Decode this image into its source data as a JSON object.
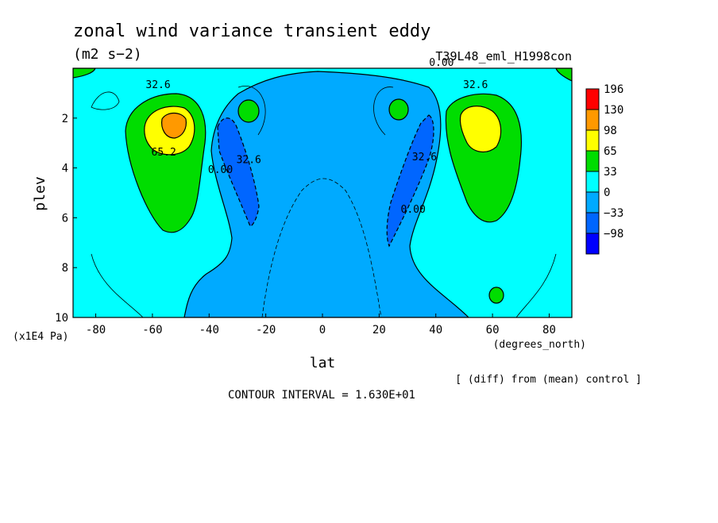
{
  "chart_data": {
    "type": "heatmap",
    "title": "zonal wind variance transient eddy",
    "units": "(m2 s−2)",
    "run_label": "T39L48_eml_H1998con",
    "xlabel": "lat",
    "x_unit": "(degrees_north)",
    "ylabel": "plev",
    "y_unit": "(x1E4 Pa)",
    "x_ticks": [
      "-80",
      "-60",
      "-40",
      "-20",
      "0",
      "20",
      "40",
      "60",
      "80"
    ],
    "y_ticks": [
      "2",
      "4",
      "6",
      "8",
      "10"
    ],
    "xlim": [
      -88,
      88
    ],
    "ylim": [
      0,
      10
    ],
    "y_reversed": true,
    "colorbar": {
      "labels": [
        "196",
        "130",
        "98",
        "65",
        "33",
        "0",
        "−33",
        "−98"
      ],
      "colors": [
        "#ff0000",
        "#ff9900",
        "#ffff00",
        "#00dd00",
        "#00ffff",
        "#00aaff",
        "#0066ff",
        "#0000ff"
      ]
    },
    "contour_labels": [
      {
        "text": "32.6",
        "lat": -58,
        "plev": 0.8
      },
      {
        "text": "65.2",
        "lat": -56,
        "plev": 3.5
      },
      {
        "text": "32.6",
        "lat": -26,
        "plev": 3.8
      },
      {
        "text": "0.00",
        "lat": -36,
        "plev": 4.2
      },
      {
        "text": "0.00",
        "lat": 42,
        "plev": -0.1
      },
      {
        "text": "32.6",
        "lat": 54,
        "plev": 0.8
      },
      {
        "text": "32.6",
        "lat": 36,
        "plev": 3.7
      },
      {
        "text": "0.00",
        "lat": 32,
        "plev": 5.8
      }
    ],
    "footer_right": "[ (diff) from (mean) control ]",
    "contour_interval": "CONTOUR INTERVAL = 1.630E+01"
  }
}
